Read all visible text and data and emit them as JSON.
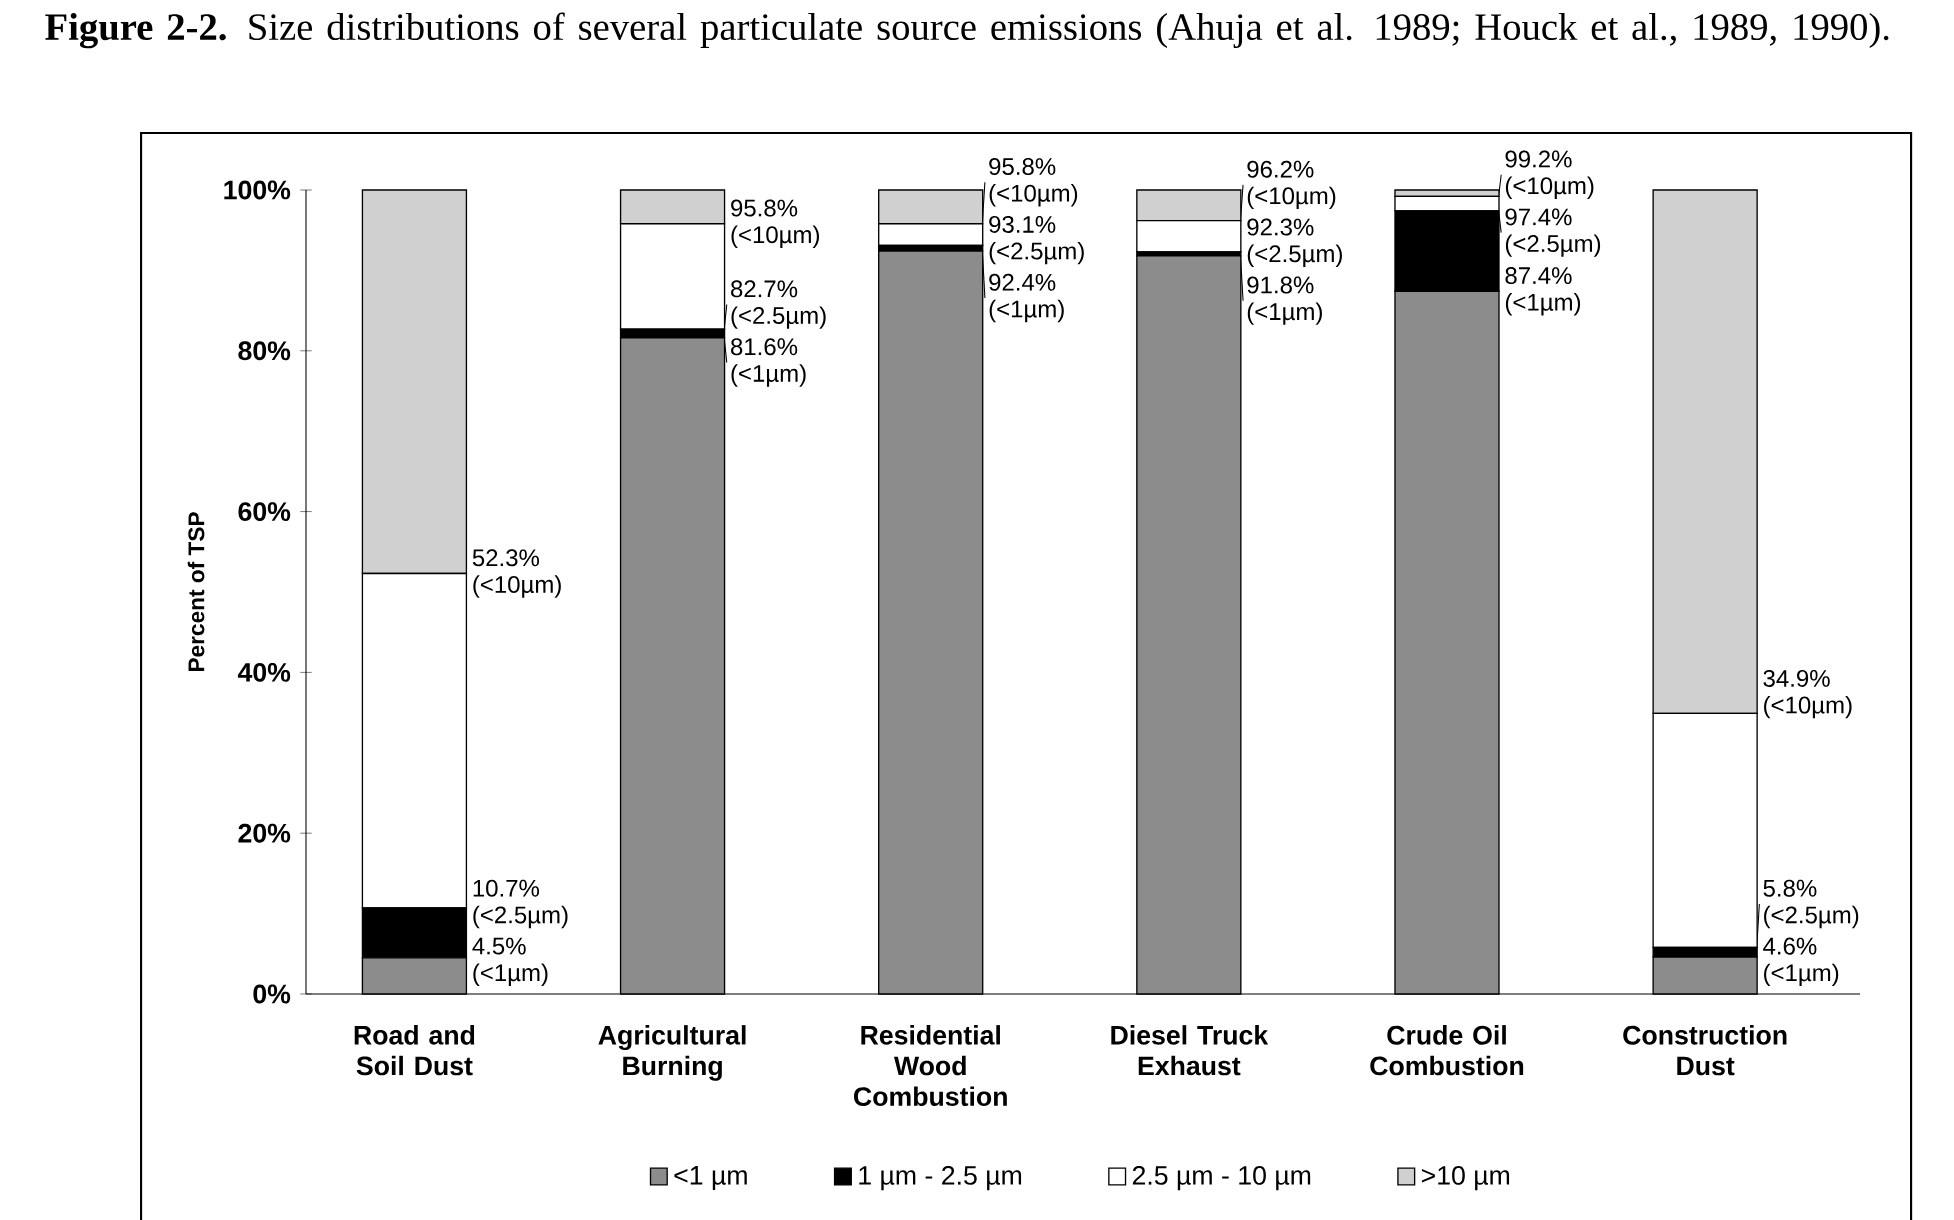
{
  "chart_data": {
    "type": "bar",
    "title": "**Figure 2-2.** Size distributions of several particulate source emissions (Ahuja et al. 1989; Houck et al., 1989, 1990).",
    "ylabel": "Percent of TSP",
    "categories": [
      "Road and Soil Dust",
      "Agricultural Burning",
      "Residential Wood Combustion",
      "Diesel Truck Exhaust",
      "Crude Oil Combustion",
      "Construction Dust"
    ],
    "stacked": true,
    "series": [
      {
        "name": "<1 µm",
        "color": "#8c8c8c",
        "values": [
          4.5,
          81.6,
          92.4,
          91.8,
          87.4,
          4.6
        ]
      },
      {
        "name": "1 µm - 2.5 µm",
        "color": "#000000",
        "values": [
          6.2,
          1.1,
          0.7,
          0.5,
          10.0,
          1.2
        ]
      },
      {
        "name": "2.5 µm - 10 µm",
        "color": "#ffffff",
        "values": [
          41.6,
          13.1,
          2.7,
          3.9,
          1.8,
          29.1
        ]
      },
      {
        "name": ">10 µm",
        "color": "#d0d0d0",
        "values": [
          47.7,
          4.2,
          4.2,
          3.8,
          0.8,
          65.1
        ]
      }
    ],
    "ylim": [
      0,
      100
    ],
    "yticks": [
      {
        "value": 0,
        "label": "0%"
      },
      {
        "value": 20,
        "label": "20%"
      },
      {
        "value": 40,
        "label": "40%"
      },
      {
        "value": 60,
        "label": "60%"
      },
      {
        "value": 80,
        "label": "80%"
      },
      {
        "value": 100,
        "label": "100%"
      }
    ],
    "legend": "bottom",
    "annotations": [
      {
        "text": "52.3% (<10µm)",
        "x": "Road and Soil Dust",
        "y": 52.3
      },
      {
        "text": "10.7% (<2.5µm)",
        "x": "Road and Soil Dust",
        "y": 10.7
      },
      {
        "text": "4.5% (<1µm)",
        "x": "Road and Soil Dust",
        "y": 4.5
      },
      {
        "text": "95.8% (<10µm)",
        "x": "Agricultural Burning",
        "y": 95.8
      },
      {
        "text": "82.7% (<2.5µm)",
        "x": "Agricultural Burning",
        "y": 82.7
      },
      {
        "text": "81.6% (<1µm)",
        "x": "Agricultural Burning",
        "y": 81.6
      },
      {
        "text": "95.8% (<10µm)",
        "x": "Residential Wood Combustion",
        "y": 95.8
      },
      {
        "text": "93.1% (<2.5µm)",
        "x": "Residential Wood Combustion",
        "y": 93.1
      },
      {
        "text": "92.4% (<1µm)",
        "x": "Residential Wood Combustion",
        "y": 92.4
      },
      {
        "text": "96.2% (<10µm)",
        "x": "Diesel Truck Exhaust",
        "y": 96.2
      },
      {
        "text": "92.3% (<2.5µm)",
        "x": "Diesel Truck Exhaust",
        "y": 92.3
      },
      {
        "text": "91.8% (<1µm)",
        "x": "Diesel Truck Exhaust",
        "y": 91.8
      },
      {
        "text": "99.2% (<10µm)",
        "x": "Crude Oil Combustion",
        "y": 99.2
      },
      {
        "text": "97.4% (<2.5µm)",
        "x": "Crude Oil Combustion",
        "y": 97.4
      },
      {
        "text": "87.4% (<1µm)",
        "x": "Crude Oil Combustion",
        "y": 87.4
      },
      {
        "text": "34.9% (<10µm)",
        "x": "Construction Dust",
        "y": 34.9
      },
      {
        "text": "5.8% (<2.5µm)",
        "x": "Construction Dust",
        "y": 5.8
      },
      {
        "text": "4.6% (<1µm)",
        "x": "Construction Dust",
        "y": 4.6
      }
    ]
  }
}
